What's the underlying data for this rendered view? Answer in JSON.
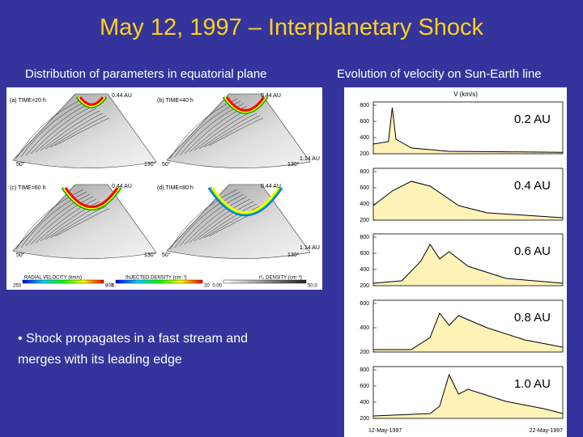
{
  "header": {
    "title": "May 12, 1997 – Interplanetary Shock"
  },
  "left": {
    "subtitle": "Distribution of parameters in equatorial plane",
    "labels": [
      "(a) TIME=20 h",
      "0.44 AU",
      "(b) TIME=40 h",
      "0.44 AU",
      "1.14 AU",
      "50°",
      "130°",
      "50°",
      "130°",
      "(c) TIME=60 h",
      "0.44 AU",
      "(d) TIME=80 h",
      "0.44 AU",
      "1.14 AU",
      "50°",
      "130°",
      "50°",
      "130°"
    ],
    "colorbars": [
      {
        "title": "RADIAL VELOCITY (km/s)",
        "min": "250",
        "max": "800"
      },
      {
        "title": "INJECTED DENSITY (cm⁻³)",
        "min": "5",
        "max": "20"
      },
      {
        "title": "r²₀ DENSITY (cm⁻³)",
        "min": "0.00",
        "max": "50.0"
      }
    ]
  },
  "right": {
    "subtitle": "Evolution of velocity on Sun-Earth line",
    "axis_label": "V (km/s)",
    "panels": [
      {
        "label": "0.2 AU",
        "ticks": [
          "800",
          "600",
          "400",
          "200"
        ]
      },
      {
        "label": "0.4 AU",
        "ticks": [
          "800",
          "600",
          "400",
          "200"
        ]
      },
      {
        "label": "0.6 AU",
        "ticks": [
          "800",
          "600",
          "400",
          "200"
        ]
      },
      {
        "label": "0.8 AU",
        "ticks": [
          "600",
          "400",
          "200"
        ]
      },
      {
        "label": "1.0 AU",
        "ticks": [
          "800",
          "600",
          "400",
          "200"
        ]
      }
    ],
    "dates": [
      "12-May-1997",
      "22-May-1997"
    ]
  },
  "bullet": "• Shock propagates in a fast stream and merges with its leading edge"
}
